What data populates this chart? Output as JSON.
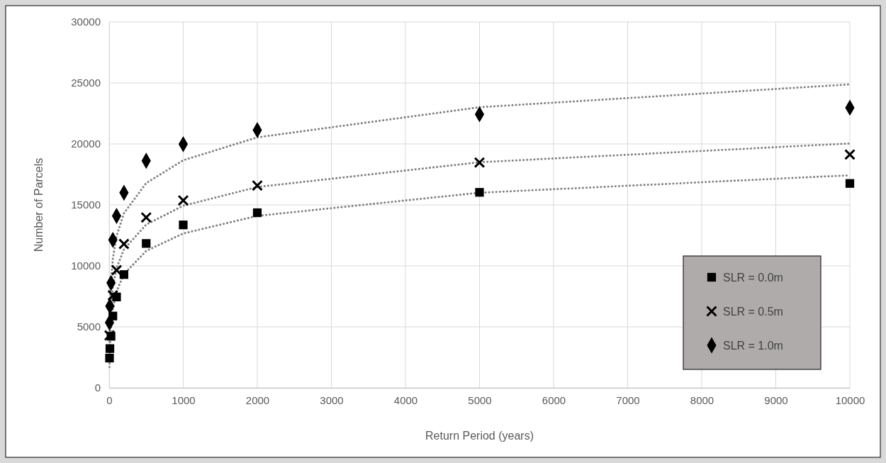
{
  "chart_data": {
    "type": "scatter",
    "xlabel": "Return Period (years)",
    "ylabel": "Number of Parcels",
    "x": [
      5,
      10,
      25,
      50,
      100,
      200,
      500,
      1000,
      2000,
      5000,
      10000
    ],
    "xlim": [
      0,
      10000
    ],
    "xticks": [
      0,
      1000,
      2000,
      3000,
      4000,
      5000,
      6000,
      7000,
      8000,
      9000,
      10000
    ],
    "ylim": [
      0,
      30000
    ],
    "yticks": [
      0,
      5000,
      10000,
      15000,
      20000,
      25000,
      30000
    ],
    "grid": true,
    "legend": "bottom right",
    "series": [
      {
        "type": "line",
        "color": "#808080",
        "line_style": "dotted",
        "marker": "none",
        "values": [
          1700,
          3130,
          5030,
          6460,
          7900,
          9330,
          11230,
          12660,
          14100,
          16000,
          17430
        ]
      },
      {
        "type": "line",
        "color": "#808080",
        "line_style": "dotted",
        "marker": "none",
        "values": [
          3170,
          4710,
          6740,
          8280,
          9820,
          11360,
          13390,
          14930,
          16470,
          18500,
          20040
        ]
      },
      {
        "type": "line",
        "color": "#808080",
        "line_style": "dotted",
        "marker": "none",
        "values": [
          4360,
          6230,
          8700,
          10580,
          12450,
          14320,
          16790,
          18660,
          20540,
          23010,
          24880
        ]
      },
      {
        "name": "SLR = 0.0m",
        "color": "#000000",
        "marker": "square",
        "values": [
          2440,
          3220,
          4230,
          5890,
          7450,
          9290,
          11840,
          13360,
          14360,
          16030,
          16760
        ]
      },
      {
        "name": "SLR = 0.5m",
        "color": "#000000",
        "marker": "cross",
        "values": [
          4300,
          null,
          null,
          7580,
          9650,
          11800,
          13970,
          15370,
          16590,
          18480,
          19130
        ]
      },
      {
        "name": "SLR = 1.0m",
        "color": "#000000",
        "marker": "diamond",
        "values": [
          5350,
          6700,
          8600,
          12130,
          14100,
          16000,
          18620,
          19980,
          21140,
          22430,
          22970
        ]
      }
    ]
  }
}
